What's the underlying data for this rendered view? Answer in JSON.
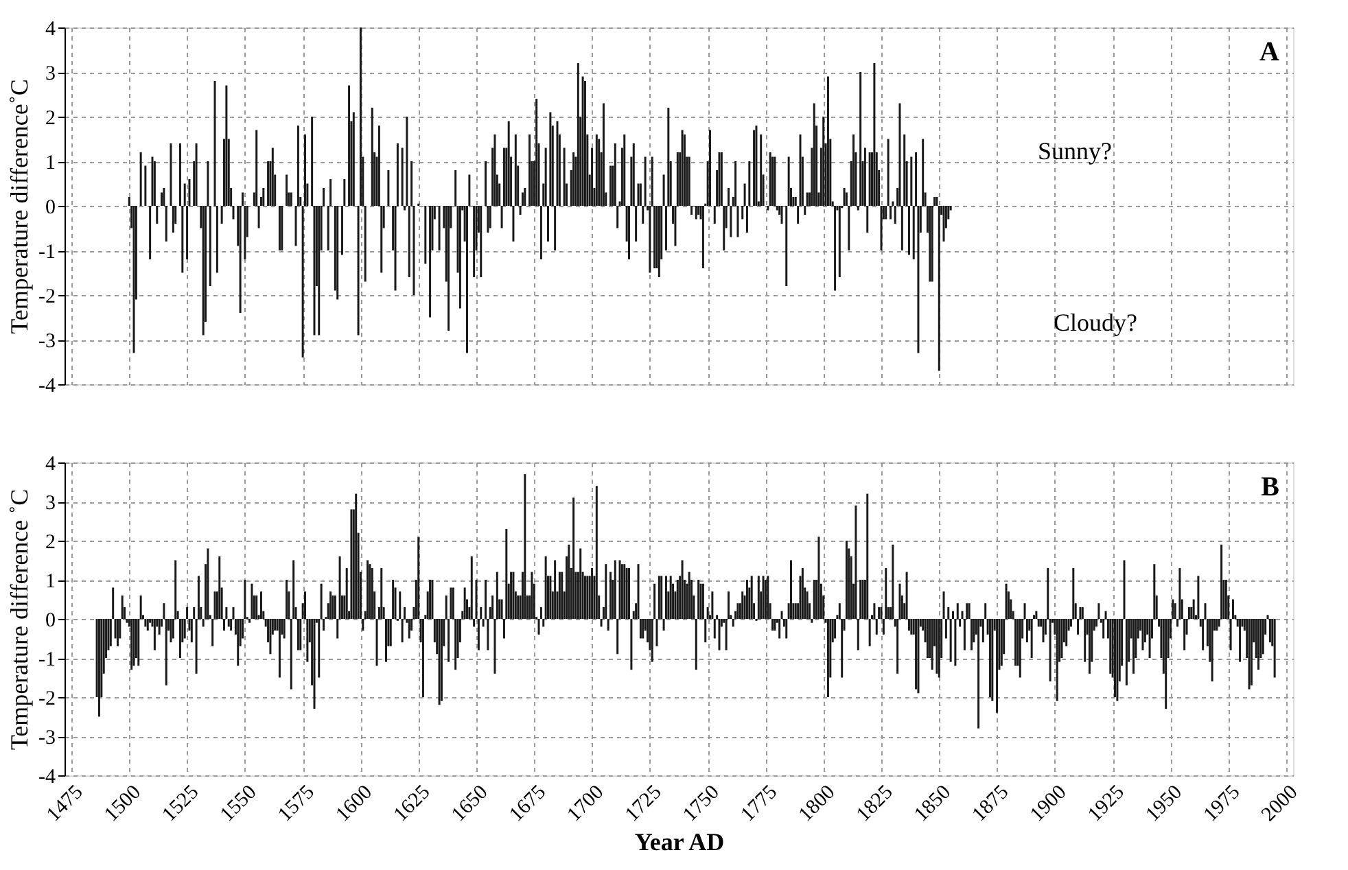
{
  "chart_data": [
    {
      "type": "bar",
      "ylabel": "Temperature difference˚C",
      "color": "#1a1a1a",
      "xlim": [
        1475,
        2000
      ],
      "xticks": [
        1475,
        1500,
        1525,
        1550,
        1575,
        1600,
        1625,
        1650,
        1675,
        1700,
        1725,
        1750,
        1775,
        1800,
        1825,
        1850,
        1875,
        1900,
        1925,
        1950,
        1975,
        2000
      ],
      "ylim": [
        -4,
        4
      ],
      "yticks": [
        -4,
        -3,
        -2,
        -1,
        0,
        1,
        2,
        3,
        4
      ],
      "grid": true,
      "tick_labels": "y",
      "annotations": [
        "A",
        "Sunny?",
        "Cloudy?"
      ],
      "x": [
        1500,
        1501,
        1502,
        1503,
        1505,
        1507,
        1509,
        1510,
        1511,
        1512,
        1514,
        1515,
        1516,
        1518,
        1519,
        1520,
        1522,
        1523,
        1524,
        1525,
        1526,
        1528,
        1529,
        1531,
        1532,
        1533,
        1534,
        1535,
        1537,
        1538,
        1540,
        1541,
        1542,
        1543,
        1544,
        1545,
        1547,
        1548,
        1549,
        1550,
        1551,
        1554,
        1555,
        1556,
        1557,
        1558,
        1560,
        1561,
        1562,
        1563,
        1565,
        1566,
        1568,
        1569,
        1570,
        1572,
        1573,
        1574,
        1575,
        1576,
        1577,
        1579,
        1580,
        1581,
        1582,
        1583,
        1584,
        1586,
        1587,
        1589,
        1590,
        1592,
        1593,
        1595,
        1596,
        1597,
        1599,
        1600,
        1601,
        1602,
        1605,
        1606,
        1607,
        1608,
        1609,
        1610,
        1612,
        1614,
        1615,
        1616,
        1618,
        1619,
        1620,
        1621,
        1622,
        1623,
        1625,
        1628,
        1630,
        1631,
        1632,
        1634,
        1636,
        1637,
        1638,
        1639,
        1641,
        1642,
        1643,
        1644,
        1645,
        1646,
        1647,
        1649,
        1650,
        1651,
        1652,
        1654,
        1655,
        1656,
        1657,
        1658,
        1659,
        1660,
        1661,
        1662,
        1663,
        1664,
        1665,
        1666,
        1667,
        1668,
        1669,
        1670,
        1671,
        1673,
        1674,
        1675,
        1676,
        1677,
        1678,
        1679,
        1680,
        1681,
        1682,
        1683,
        1684,
        1685,
        1686,
        1688,
        1689,
        1691,
        1692,
        1693,
        1694,
        1695,
        1696,
        1697,
        1698,
        1699,
        1700,
        1701,
        1702,
        1703,
        1704,
        1705,
        1706,
        1708,
        1709,
        1710,
        1711,
        1712,
        1713,
        1714,
        1715,
        1716,
        1717,
        1718,
        1719,
        1720,
        1721,
        1722,
        1723,
        1724,
        1725,
        1726,
        1727,
        1728,
        1729,
        1730,
        1731,
        1732,
        1733,
        1734,
        1735,
        1736,
        1737,
        1738,
        1739,
        1740,
        1741,
        1742,
        1743,
        1745,
        1746,
        1747,
        1748,
        1749,
        1750,
        1751,
        1753,
        1754,
        1755,
        1756,
        1757,
        1758,
        1759,
        1760,
        1761,
        1762,
        1763,
        1765,
        1766,
        1767,
        1768,
        1770,
        1771,
        1772,
        1773,
        1774,
        1776,
        1777,
        1778,
        1779,
        1780,
        1781,
        1782,
        1784,
        1785,
        1786,
        1787,
        1788,
        1789,
        1790,
        1791,
        1792,
        1793,
        1794,
        1795,
        1796,
        1797,
        1798,
        1799,
        1800,
        1801,
        1802,
        1803,
        1804,
        1805,
        1806,
        1807,
        1808,
        1809,
        1810,
        1811,
        1812,
        1813,
        1814,
        1815,
        1816,
        1817,
        1818,
        1819,
        1820,
        1821,
        1822,
        1823,
        1824,
        1825,
        1826,
        1827,
        1828,
        1829,
        1830,
        1831,
        1832,
        1833,
        1834,
        1835,
        1836,
        1837,
        1838,
        1839,
        1840,
        1841,
        1842,
        1843,
        1844,
        1845,
        1846,
        1847,
        1848,
        1849,
        1850,
        1851,
        1852,
        1853,
        1854,
        1855
      ],
      "values": [
        0.2,
        -0.5,
        -3.3,
        -2.1,
        1.2,
        0.9,
        -1.2,
        1.1,
        1.0,
        -0.4,
        0.3,
        0.4,
        -0.8,
        1.4,
        -0.6,
        -0.4,
        1.4,
        -1.5,
        0.5,
        -1.2,
        0.6,
        1.0,
        1.4,
        -0.5,
        -2.9,
        -2.6,
        1.0,
        -1.8,
        2.8,
        -1.5,
        -0.4,
        1.5,
        2.7,
        1.5,
        0.4,
        -0.3,
        -0.9,
        -2.4,
        0.3,
        -1.2,
        -0.7,
        0.3,
        1.7,
        -0.5,
        0.2,
        0.4,
        1.0,
        1.0,
        1.3,
        0.7,
        -1.0,
        -1.0,
        0.7,
        0.3,
        0.3,
        -0.9,
        1.8,
        0.2,
        -3.4,
        1.6,
        0.5,
        2.0,
        -2.9,
        -1.8,
        -2.9,
        -1.0,
        0.4,
        -1.0,
        0.6,
        -1.9,
        -2.1,
        -1.1,
        0.6,
        2.7,
        1.9,
        2.1,
        -2.9,
        4.0,
        1.1,
        -1.7,
        2.2,
        1.2,
        1.1,
        1.8,
        -1.5,
        -0.5,
        0.8,
        -1.0,
        -1.9,
        1.4,
        1.3,
        -0.1,
        2.0,
        -1.6,
        1.0,
        -2.0,
        0.05,
        -1.3,
        -2.5,
        -1.0,
        -0.3,
        -1.0,
        -0.5,
        -1.7,
        -2.8,
        -0.5,
        0.8,
        -1.5,
        -2.3,
        -0.1,
        -0.8,
        -3.3,
        0.7,
        -1.6,
        -1.0,
        -0.6,
        -1.6,
        1.0,
        -0.6,
        -0.5,
        1.3,
        1.6,
        0.7,
        0.5,
        -0.5,
        1.3,
        1.3,
        1.9,
        1.1,
        -0.8,
        1.6,
        0.9,
        -0.2,
        0.3,
        0.4,
        1.6,
        1.0,
        1.0,
        2.4,
        1.4,
        -1.2,
        0.5,
        1.3,
        -0.8,
        2.1,
        1.8,
        -1.0,
        1.9,
        1.6,
        1.3,
        0.5,
        0.8,
        1.2,
        1.1,
        3.2,
        2.0,
        2.9,
        2.8,
        1.6,
        0.7,
        1.3,
        0.4,
        1.6,
        1.5,
        1.2,
        2.3,
        0.3,
        0.9,
        0.9,
        1.4,
        -0.5,
        0.1,
        1.3,
        1.6,
        -0.8,
        -1.2,
        1.1,
        1.4,
        -0.8,
        0.5,
        0.5,
        -0.4,
        1.1,
        -0.1,
        -1.5,
        1.1,
        -1.4,
        -1.4,
        -1.6,
        -1.2,
        0.7,
        -1.0,
        2.2,
        1.0,
        -0.4,
        -0.9,
        1.2,
        1.2,
        1.7,
        1.6,
        1.1,
        1.1,
        -0.2,
        -0.3,
        -0.2,
        -0.3,
        -1.4,
        0.05,
        1.0,
        1.7,
        -0.4,
        0.8,
        1.2,
        1.2,
        -1.0,
        -0.5,
        0.4,
        -0.7,
        0.2,
        1.0,
        -0.7,
        -0.3,
        0.5,
        -0.6,
        1.0,
        1.7,
        1.8,
        0.1,
        1.6,
        0.7,
        -0.1,
        1.2,
        1.1,
        1.1,
        -0.1,
        -0.2,
        -0.4,
        -1.8,
        1.1,
        0.4,
        0.2,
        0.2,
        -0.4,
        1.6,
        1.1,
        -0.2,
        0.3,
        0.3,
        1.3,
        2.3,
        1.8,
        0.3,
        1.3,
        2.0,
        1.4,
        2.9,
        1.5,
        0.1,
        -1.9,
        -0.1,
        -1.6,
        -0.05,
        0.4,
        0.3,
        -1.0,
        1.0,
        1.6,
        1.2,
        -0.1,
        3.0,
        1.0,
        1.3,
        -0.6,
        1.2,
        1.2,
        3.2,
        1.2,
        0.8,
        -1.0,
        -0.3,
        -0.3,
        1.5,
        -0.3,
        0.1,
        -0.4,
        0.4,
        2.3,
        -1.0,
        1.6,
        1.0,
        -1.1,
        1.1,
        -1.2,
        1.2,
        -3.3,
        -0.6,
        1.5,
        0.3,
        -0.6,
        -1.7,
        -1.7,
        0.2,
        0.2,
        -3.7,
        -0.2,
        -0.8,
        -0.5,
        -0.3,
        -0.1
      ]
    },
    {
      "type": "bar",
      "xlabel": "Year AD",
      "ylabel": "Temperature difference ˚C",
      "color": "#1a1a1a",
      "xlim": [
        1475,
        2000
      ],
      "xticks": [
        1475,
        1500,
        1525,
        1550,
        1575,
        1600,
        1625,
        1650,
        1675,
        1700,
        1725,
        1750,
        1775,
        1800,
        1825,
        1850,
        1875,
        1900,
        1925,
        1950,
        1975,
        2000
      ],
      "ylim": [
        -4,
        4
      ],
      "yticks": [
        -4,
        -3,
        -2,
        -1,
        0,
        1,
        2,
        3,
        4
      ],
      "grid": true,
      "annotations": [
        "B"
      ],
      "x": [
        1486,
        1487,
        1488,
        1489,
        1490,
        1491,
        1492,
        1493,
        1494,
        1495,
        1496,
        1497,
        1498,
        1499,
        1500,
        1501,
        1502,
        1503,
        1504,
        1505,
        1506,
        1507,
        1508,
        1509,
        1510,
        1511,
        1512,
        1513,
        1514,
        1515,
        1516,
        1517,
        1518,
        1519,
        1520,
        1521,
        1522,
        1523,
        1524,
        1525,
        1526,
        1527,
        1528,
        1529,
        1530,
        1531,
        1532,
        1533,
        1534,
        1535,
        1536,
        1537,
        1538,
        1539,
        1540,
        1541,
        1542,
        1543,
        1544,
        1545,
        1546,
        1547,
        1548,
        1549,
        1550,
        1551,
        1552,
        1553,
        1554,
        1555,
        1556,
        1557,
        1558,
        1559,
        1560,
        1561,
        1562,
        1563,
        1564,
        1565,
        1566,
        1567,
        1568,
        1569,
        1570,
        1571,
        1572,
        1573,
        1574,
        1575,
        1576,
        1577,
        1578,
        1579,
        1580,
        1581,
        1582,
        1583,
        1584,
        1585,
        1586,
        1587,
        1588,
        1589,
        1590,
        1591,
        1592,
        1593,
        1594,
        1595,
        1596,
        1597,
        1598,
        1599,
        1600,
        1601,
        1602,
        1603,
        1604,
        1605,
        1606,
        1607,
        1608,
        1609,
        1610,
        1611,
        1612,
        1613,
        1614,
        1615,
        1616,
        1617,
        1618,
        1619,
        1620,
        1621,
        1622,
        1623,
        1624,
        1625,
        1626,
        1627,
        1628,
        1629,
        1630,
        1631,
        1632,
        1633,
        1634,
        1635,
        1636,
        1637,
        1638,
        1639,
        1640,
        1641,
        1642,
        1643,
        1644,
        1645,
        1646,
        1647,
        1648,
        1649,
        1650,
        1651,
        1652,
        1653,
        1654,
        1655,
        1656,
        1657,
        1658,
        1659,
        1660,
        1661,
        1662,
        1663,
        1664,
        1665,
        1666,
        1667,
        1668,
        1669,
        1670,
        1671,
        1672,
        1673,
        1674,
        1675,
        1676,
        1677,
        1678,
        1679,
        1680,
        1681,
        1682,
        1683,
        1684,
        1685,
        1686,
        1687,
        1688,
        1689,
        1690,
        1691,
        1692,
        1693,
        1694,
        1695,
        1696,
        1697,
        1698,
        1699,
        1700,
        1701,
        1702,
        1703,
        1704,
        1705,
        1706,
        1707,
        1708,
        1709,
        1710,
        1711,
        1712,
        1713,
        1714,
        1715,
        1716,
        1717,
        1718,
        1719,
        1720,
        1721,
        1722,
        1723,
        1724,
        1725,
        1726,
        1727,
        1728,
        1729,
        1730,
        1731,
        1732,
        1733,
        1734,
        1735,
        1736,
        1737,
        1738,
        1739,
        1740,
        1741,
        1742,
        1743,
        1744,
        1745,
        1746,
        1747,
        1748,
        1749,
        1750,
        1751,
        1752,
        1753,
        1754,
        1755,
        1756,
        1757,
        1758,
        1759,
        1760,
        1761,
        1762,
        1763,
        1764,
        1765,
        1766,
        1767,
        1768,
        1769,
        1770,
        1771,
        1772,
        1773,
        1774,
        1775,
        1776,
        1777,
        1778,
        1779,
        1780,
        1781,
        1782,
        1783,
        1784,
        1785,
        1786,
        1787,
        1788,
        1789,
        1790,
        1791,
        1792,
        1793,
        1794,
        1795,
        1796,
        1797,
        1798,
        1799,
        1800,
        1801,
        1802,
        1803,
        1804,
        1805,
        1806,
        1807,
        1808,
        1809,
        1810,
        1811,
        1812,
        1813,
        1814,
        1815,
        1816,
        1817,
        1818,
        1819,
        1820,
        1821,
        1822,
        1823,
        1824,
        1825,
        1826,
        1827,
        1828,
        1829,
        1830,
        1831,
        1832,
        1833,
        1834,
        1835,
        1836,
        1837,
        1838,
        1839,
        1840,
        1841,
        1842,
        1843,
        1844,
        1845,
        1846,
        1847,
        1848,
        1849,
        1850,
        1851,
        1852,
        1853,
        1854,
        1855,
        1856,
        1857,
        1858,
        1859,
        1860,
        1861,
        1862,
        1863,
        1864,
        1865,
        1866,
        1867,
        1868,
        1869,
        1870,
        1871,
        1872,
        1873,
        1874,
        1875,
        1876,
        1877,
        1878,
        1879,
        1880,
        1881,
        1882,
        1883,
        1884,
        1885,
        1886,
        1887,
        1888,
        1889,
        1890,
        1891,
        1892,
        1893,
        1894,
        1895,
        1896,
        1897,
        1898,
        1899,
        1900,
        1901,
        1902,
        1903,
        1904,
        1905,
        1906,
        1907,
        1908,
        1909,
        1910,
        1911,
        1912,
        1913,
        1914,
        1915,
        1916,
        1917,
        1918,
        1919,
        1920,
        1921,
        1922,
        1923,
        1924,
        1925,
        1926,
        1927,
        1928,
        1929,
        1930,
        1931,
        1932,
        1933,
        1934,
        1935,
        1936,
        1937,
        1938,
        1939,
        1940,
        1941,
        1942,
        1943,
        1944,
        1945,
        1946,
        1947,
        1948,
        1949,
        1950,
        1951,
        1952,
        1953,
        1954,
        1955,
        1956,
        1957,
        1958,
        1959,
        1960,
        1961,
        1962,
        1963,
        1964,
        1965,
        1966,
        1967,
        1968,
        1969,
        1970,
        1971,
        1972,
        1973,
        1974,
        1975,
        1976,
        1977,
        1978,
        1979,
        1980,
        1981,
        1982,
        1983,
        1984,
        1985,
        1986,
        1987,
        1988,
        1989,
        1990,
        1991,
        1992,
        1993,
        1994,
        1995
      ],
      "values": [
        -2.0,
        -2.5,
        -2.0,
        -1.4,
        -1.0,
        -0.8,
        -0.7,
        0.8,
        -0.5,
        -0.7,
        -0.5,
        0.6,
        0.3,
        -0.1,
        -0.2,
        -1.3,
        -1.2,
        -1.0,
        -1.2,
        0.6,
        0.1,
        -0.2,
        -0.3,
        -0.1,
        -0.2,
        -0.8,
        -0.2,
        -0.4,
        -0.2,
        0.4,
        -1.7,
        -0.3,
        -0.6,
        -0.5,
        1.5,
        0.2,
        -1.0,
        -0.6,
        -0.5,
        0.3,
        -0.3,
        -0.6,
        0.3,
        -1.4,
        1.1,
        0.3,
        -0.2,
        1.4,
        1.8,
        0.1,
        -0.7,
        0.7,
        0.7,
        1.6,
        0.8,
        -0.3,
        0.3,
        -0.2,
        -0.3,
        0.3,
        -0.4,
        -1.2,
        -0.7,
        -0.5,
        1.0,
        0.05,
        -0.1,
        0.9,
        0.6,
        0.6,
        0.1,
        0.7,
        0.2,
        -0.2,
        -0.6,
        -0.9,
        -0.4,
        -0.3,
        -0.3,
        -1.5,
        -0.4,
        -0.5,
        1.0,
        0.7,
        -1.8,
        1.5,
        0.3,
        -0.8,
        -0.8,
        0.4,
        0.7,
        -1.1,
        -0.6,
        -1.7,
        -2.3,
        -0.1,
        -1.5,
        0.9,
        -0.3,
        0.05,
        0.4,
        0.7,
        0.6,
        0.6,
        -0.5,
        1.6,
        0.6,
        0.6,
        1.3,
        0.2,
        2.8,
        2.8,
        3.2,
        2.2,
        1.2,
        -0.3,
        0.2,
        1.5,
        1.4,
        1.3,
        0.7,
        -1.2,
        0.3,
        1.3,
        0.3,
        -1.1,
        -0.7,
        -0.7,
        1.0,
        0.8,
        -0.05,
        0.7,
        -0.6,
        0.3,
        -0.1,
        -0.5,
        -0.3,
        0.3,
        1.0,
        2.1,
        -0.6,
        -2.0,
        0.1,
        0.7,
        1.0,
        1.0,
        -0.6,
        -0.9,
        -2.2,
        -2.1,
        -0.7,
        0.6,
        -1.1,
        0.8,
        0.8,
        -1.3,
        -1.0,
        -0.6,
        0.2,
        0.8,
        0.5,
        0.3,
        1.6,
        -0.2,
        1.0,
        -0.8,
        0.3,
        -0.2,
        1.0,
        -0.8,
        0.3,
        0.6,
        -1.4,
        1.2,
        0.5,
        0.5,
        -0.5,
        2.3,
        0.9,
        1.2,
        1.2,
        0.7,
        0.6,
        0.6,
        1.2,
        3.7,
        0.6,
        0.6,
        1.2,
        0.9,
        0.05,
        -0.4,
        0.3,
        -0.2,
        1.6,
        1.1,
        1.1,
        0.7,
        1.5,
        0.7,
        1.2,
        1.2,
        0.7,
        1.6,
        1.9,
        1.3,
        3.1,
        1.2,
        1.2,
        1.8,
        1.2,
        1.1,
        1.1,
        1.1,
        1.3,
        1.1,
        3.4,
        0.6,
        -0.2,
        0.3,
        1.4,
        -0.3,
        1.2,
        1.0,
        1.5,
        -0.9,
        1.5,
        1.4,
        1.4,
        1.3,
        1.3,
        -1.3,
        0.2,
        0.4,
        1.4,
        -0.5,
        -0.5,
        -0.3,
        -0.6,
        -0.8,
        -1.1,
        0.9,
        -0.7,
        1.1,
        1.1,
        -0.3,
        1.1,
        0.7,
        1.1,
        0.9,
        0.7,
        1.0,
        1.1,
        1.5,
        1.0,
        0.9,
        1.2,
        1.0,
        0.6,
        -1.3,
        1.0,
        0.9,
        0.9,
        -0.6,
        0.3,
        0.1,
        0.7,
        -0.5,
        0.1,
        -0.8,
        -0.2,
        -0.1,
        -0.8,
        0.7,
        0.1,
        -0.2,
        0.2,
        0.4,
        0.4,
        0.7,
        0.6,
        1.0,
        0.8,
        1.1,
        0.4,
        -0.05,
        1.1,
        0.7,
        1.1,
        1.0,
        1.1,
        0.4,
        -0.3,
        -0.3,
        -0.1,
        -0.5,
        0.2,
        -0.2,
        -0.5,
        0.4,
        1.5,
        0.4,
        0.4,
        0.4,
        1.1,
        1.3,
        0.8,
        0.7,
        0.4,
        -0.1,
        1.0,
        1.0,
        2.1,
        0.9,
        0.6,
        -0.1,
        -2.0,
        -1.5,
        -0.6,
        -0.5,
        0.1,
        0.4,
        -1.5,
        -0.3,
        2.0,
        1.8,
        1.6,
        0.9,
        2.9,
        -0.8,
        1.0,
        1.0,
        1.0,
        3.2,
        -0.7,
        0.1,
        0.4,
        -0.4,
        0.3,
        0.3,
        -0.4,
        1.3,
        0.3,
        0.3,
        1.9,
        -0.2,
        -1.4,
        0.9,
        0.6,
        0.4,
        1.2,
        -0.3,
        -0.4,
        -0.4,
        -1.8,
        -1.9,
        -0.2,
        -0.3,
        -0.6,
        -1.0,
        -1.0,
        -1.3,
        -0.7,
        -1.4,
        -1.5,
        -1.0,
        0.7,
        -0.5,
        0.3,
        -1.1,
        0.2,
        -1.2,
        0.4,
        -0.2,
        0.2,
        -0.8,
        0.4,
        0.4,
        -0.8,
        -0.6,
        -0.4,
        -2.8,
        -0.2,
        -0.6,
        0.4,
        -0.4,
        -2.0,
        -2.1,
        -0.3,
        -2.4,
        -1.3,
        -1.2,
        -0.9,
        0.9,
        0.7,
        0.5,
        0.2,
        -1.2,
        -1.2,
        -1.5,
        -0.5,
        0.4,
        -0.6,
        -0.3,
        -1.0,
        0.1,
        0.2,
        -0.2,
        -0.2,
        -0.6,
        -0.4,
        1.3,
        -1.6,
        -0.1,
        -0.4,
        -2.1,
        -1.1,
        -1.0,
        -0.6,
        -0.7,
        -0.3,
        -0.2,
        1.3,
        0.4,
        -0.4,
        0.3,
        0.3,
        -1.1,
        -0.4,
        -1.4,
        -1.1,
        -0.3,
        -0.2,
        0.4,
        -0.1,
        -0.5,
        0.2,
        -0.5,
        -1.4,
        -1.5,
        -2.0,
        -2.1,
        -1.6,
        -1.2,
        1.5,
        -1.7,
        -1.1,
        -0.5,
        -1.4,
        -1.0,
        -0.5,
        -0.3,
        -0.8,
        -0.6,
        -0.4,
        -1.0,
        -0.5,
        1.4,
        0.6,
        -0.2,
        -1.0,
        -1.4,
        -2.3,
        -1.0,
        -0.5,
        0.5,
        0.4,
        -0.2,
        1.3,
        0.5,
        -0.8,
        -0.4,
        0.3,
        0.3,
        0.5,
        0.1,
        1.1,
        -0.2,
        -0.8,
        0.4,
        -0.7,
        -1.1,
        -1.6,
        -0.3,
        -0.3,
        -0.2,
        1.9,
        1.0,
        1.0,
        0.6,
        -0.8,
        0.5,
        0.1,
        -0.2,
        -1.1,
        -0.2,
        -0.3,
        -1.0,
        -1.8,
        -1.7,
        -0.6,
        -1.0,
        -1.3,
        -1.0,
        -0.9,
        -0.4,
        0.1,
        -0.6,
        -0.7,
        -1.5
      ]
    }
  ]
}
